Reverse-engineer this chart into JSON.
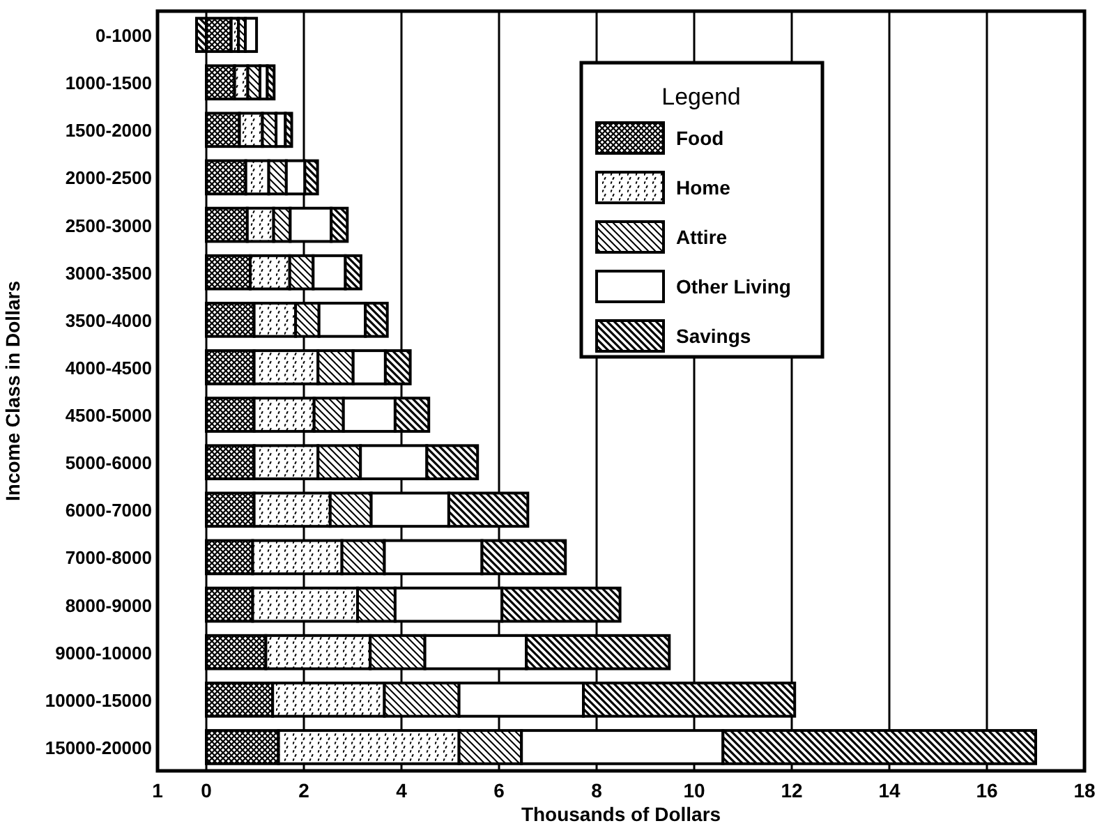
{
  "chart_data": {
    "type": "bar",
    "orientation": "horizontal",
    "stacked": true,
    "xlabel": "Thousands of Dollars",
    "ylabel": "Income Class in Dollars",
    "legend_title": "Legend",
    "legend": "top right",
    "grid": "x",
    "categories": [
      "0-1000",
      "1000-1500",
      "1500-2000",
      "2000-2500",
      "2500-3000",
      "3000-3500",
      "3500-4000",
      "4000-4500",
      "4500-5000",
      "5000-6000",
      "6000-7000",
      "7000-8000",
      "8000-9000",
      "9000-10000",
      "10000-15000",
      "15000-20000"
    ],
    "xlim": [
      -1,
      18
    ],
    "xticks": [
      {
        "value": -1,
        "label": "1"
      },
      0,
      2,
      4,
      6,
      8,
      10,
      12,
      14,
      16,
      18
    ],
    "series": [
      {
        "name": "Food",
        "color": "#000000",
        "values": [
          0.51,
          0.58,
          0.68,
          0.81,
          0.84,
          0.9,
          0.98,
          0.98,
          0.98,
          0.98,
          0.98,
          0.95,
          0.95,
          1.22,
          1.36,
          1.48
        ]
      },
      {
        "name": "Home",
        "color": "#000000",
        "values": [
          0.15,
          0.27,
          0.47,
          0.47,
          0.54,
          0.81,
          0.85,
          1.31,
          1.23,
          1.31,
          1.56,
          1.83,
          2.15,
          2.14,
          2.29,
          3.7
        ]
      },
      {
        "name": "Attire",
        "color": "#000000",
        "values": [
          0.14,
          0.25,
          0.28,
          0.36,
          0.34,
          0.48,
          0.48,
          0.72,
          0.6,
          0.87,
          0.84,
          0.87,
          0.77,
          1.12,
          1.53,
          1.28
        ]
      },
      {
        "name": "Other Living",
        "color": "#ffffff",
        "values": [
          0.23,
          0.15,
          0.19,
          0.38,
          0.84,
          0.66,
          0.95,
          0.66,
          1.06,
          1.36,
          1.59,
          2.0,
          2.19,
          2.08,
          2.55,
          4.13
        ]
      },
      {
        "name": "Savings",
        "color": "#000000",
        "values": [
          -0.2,
          0.14,
          0.13,
          0.26,
          0.33,
          0.32,
          0.45,
          0.51,
          0.69,
          1.04,
          1.62,
          1.71,
          2.42,
          2.93,
          4.33,
          6.41
        ]
      }
    ]
  }
}
